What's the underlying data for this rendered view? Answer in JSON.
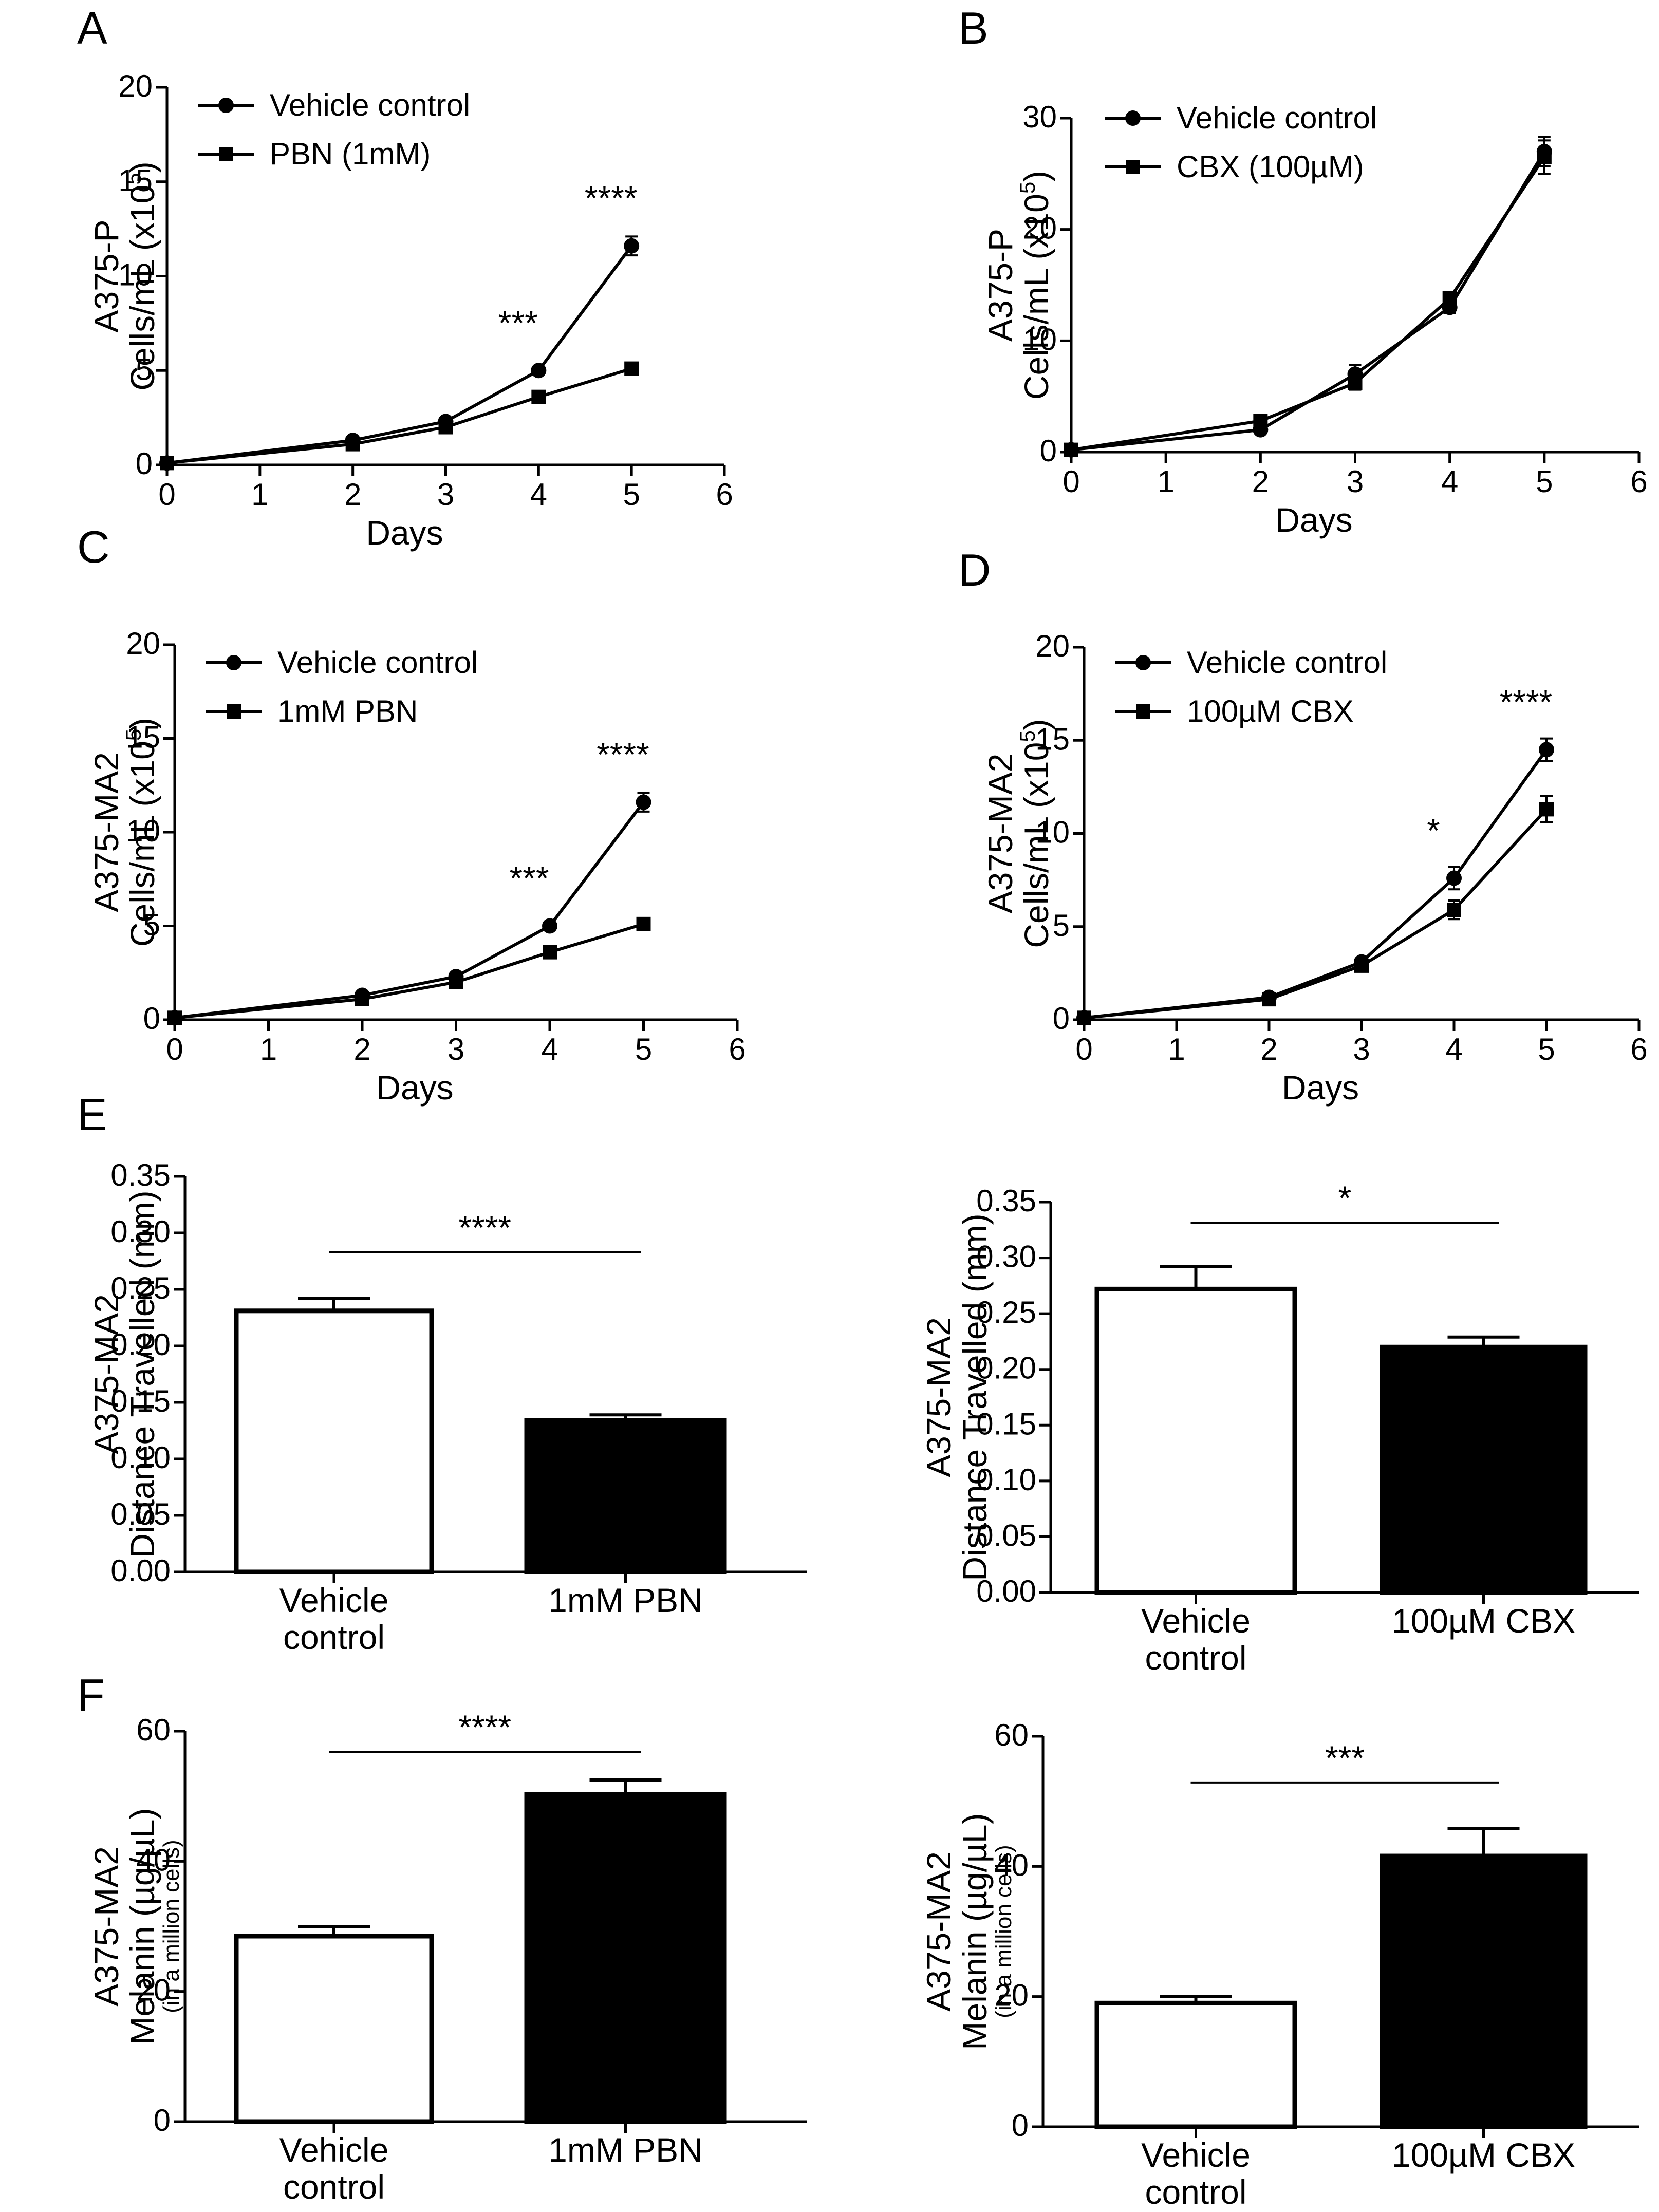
{
  "panel_letters": {
    "A": "A",
    "B": "B",
    "C": "C",
    "D": "D",
    "E": "E",
    "F": "F"
  },
  "chart_data": [
    {
      "id": "A",
      "type": "line",
      "ylabel_line1": "A375-P",
      "ylabel_line2": "Cells/mL (x10",
      "ylabel_sup": "5",
      "ylabel_close": ")",
      "xlabel": "Days",
      "xlim": [
        0,
        6
      ],
      "ylim": [
        0,
        20
      ],
      "xticks": [
        "0",
        "1",
        "2",
        "3",
        "4",
        "5",
        "6"
      ],
      "yticks": [
        "0",
        "5",
        "10",
        "15",
        "20"
      ],
      "series": [
        {
          "name": "Vehicle control",
          "marker": "circle",
          "x": [
            0,
            2,
            3,
            4,
            5
          ],
          "y": [
            0.1,
            1.3,
            2.3,
            5.0,
            11.6
          ],
          "err": [
            0,
            0.1,
            0.15,
            0.1,
            0.5
          ]
        },
        {
          "name": "PBN (1mM)",
          "marker": "square",
          "x": [
            0,
            2,
            3,
            4,
            5
          ],
          "y": [
            0.1,
            1.1,
            2.0,
            3.6,
            5.1
          ],
          "err": [
            0,
            0.1,
            0.1,
            0.1,
            0.1
          ]
        }
      ],
      "annotations": [
        {
          "x": 4,
          "y": 5.0,
          "text": "***"
        },
        {
          "x": 5,
          "y": 11.6,
          "text": "****"
        }
      ]
    },
    {
      "id": "B",
      "type": "line",
      "ylabel_line1": "A375-P",
      "ylabel_line2": "Cells/mL (x10",
      "ylabel_sup": "5",
      "ylabel_close": ")",
      "xlabel": "Days",
      "xlim": [
        0,
        6
      ],
      "ylim": [
        0,
        30
      ],
      "xticks": [
        "0",
        "1",
        "2",
        "3",
        "4",
        "5",
        "6"
      ],
      "yticks": [
        "0",
        "10",
        "20",
        "30"
      ],
      "series": [
        {
          "name": "Vehicle control",
          "marker": "circle",
          "x": [
            0,
            2,
            3,
            4,
            5
          ],
          "y": [
            0.2,
            2.0,
            7.0,
            13.0,
            27.0
          ],
          "err": [
            0,
            0.3,
            0.8,
            0.5,
            1.3
          ]
        },
        {
          "name": "CBX (100µM)",
          "marker": "square",
          "x": [
            0,
            2,
            3,
            4,
            5
          ],
          "y": [
            0.2,
            2.8,
            6.2,
            13.8,
            26.5
          ],
          "err": [
            0,
            0.4,
            0.6,
            0.6,
            1.5
          ]
        }
      ],
      "annotations": []
    },
    {
      "id": "C",
      "type": "line",
      "ylabel_line1": "A375-MA2",
      "ylabel_line2": "Cells/mL (x10",
      "ylabel_sup": "5",
      "ylabel_close": ")",
      "xlabel": "Days",
      "xlim": [
        0,
        6
      ],
      "ylim": [
        0,
        20
      ],
      "xticks": [
        "0",
        "1",
        "2",
        "3",
        "4",
        "5",
        "6"
      ],
      "yticks": [
        "0",
        "5",
        "10",
        "15",
        "20"
      ],
      "series": [
        {
          "name": "Vehicle control",
          "marker": "circle",
          "x": [
            0,
            2,
            3,
            4,
            5
          ],
          "y": [
            0.1,
            1.3,
            2.3,
            5.0,
            11.6
          ],
          "err": [
            0,
            0.1,
            0.15,
            0.1,
            0.5
          ]
        },
        {
          "name": "1mM PBN",
          "marker": "square",
          "x": [
            0,
            2,
            3,
            4,
            5
          ],
          "y": [
            0.1,
            1.1,
            2.0,
            3.6,
            5.1
          ],
          "err": [
            0,
            0.1,
            0.1,
            0.1,
            0.1
          ]
        }
      ],
      "annotations": [
        {
          "x": 4,
          "y": 5.0,
          "text": "***"
        },
        {
          "x": 5,
          "y": 11.6,
          "text": "****"
        }
      ]
    },
    {
      "id": "D",
      "type": "line",
      "ylabel_line1": "A375-MA2",
      "ylabel_line2": "Cells/mL (x10",
      "ylabel_sup": "5",
      "ylabel_close": ")",
      "xlabel": "Days",
      "xlim": [
        0,
        6
      ],
      "ylim": [
        0,
        20
      ],
      "xticks": [
        "0",
        "1",
        "2",
        "3",
        "4",
        "5",
        "6"
      ],
      "yticks": [
        "0",
        "5",
        "10",
        "15",
        "20"
      ],
      "series": [
        {
          "name": "Vehicle control",
          "marker": "circle",
          "x": [
            0,
            2,
            3,
            4,
            5
          ],
          "y": [
            0.1,
            1.2,
            3.1,
            7.6,
            14.5
          ],
          "err": [
            0,
            0.1,
            0.2,
            0.6,
            0.6
          ]
        },
        {
          "name": "100µM CBX",
          "marker": "square",
          "x": [
            0,
            2,
            3,
            4,
            5
          ],
          "y": [
            0.1,
            1.1,
            2.9,
            5.9,
            11.3
          ],
          "err": [
            0,
            0.1,
            0.2,
            0.5,
            0.7
          ]
        }
      ],
      "annotations": [
        {
          "x": 4,
          "y": 7.6,
          "text": "*"
        },
        {
          "x": 5,
          "y": 14.5,
          "text": "****"
        }
      ]
    },
    {
      "id": "E1",
      "type": "bar",
      "ylabel_line1": "A375-MA2",
      "ylabel_line2": "Distance Travelled (mm)",
      "ylim": [
        0,
        0.35
      ],
      "yticks": [
        "0.00",
        "0.05",
        "0.10",
        "0.15",
        "0.20",
        "0.25",
        "0.30",
        "0.35"
      ],
      "categories": [
        [
          "Vehicle",
          "control"
        ],
        [
          "1mM PBN"
        ]
      ],
      "values": [
        0.231,
        0.134
      ],
      "errors": [
        0.011,
        0.005
      ],
      "fills": [
        "#ffffff",
        "#000000"
      ],
      "significance": "****"
    },
    {
      "id": "E2",
      "type": "bar",
      "ylabel_line1": "A375-MA2",
      "ylabel_line2": "Distance Travelled (mm)",
      "ylim": [
        0,
        0.35
      ],
      "yticks": [
        "0.00",
        "0.05",
        "0.10",
        "0.15",
        "0.20",
        "0.25",
        "0.30",
        "0.35"
      ],
      "categories": [
        [
          "Vehicle",
          "control"
        ],
        [
          "100µM CBX"
        ]
      ],
      "values": [
        0.272,
        0.22
      ],
      "errors": [
        0.02,
        0.009
      ],
      "fills": [
        "#ffffff",
        "#000000"
      ],
      "significance": "*"
    },
    {
      "id": "F1",
      "type": "bar",
      "ylabel_line1": "A375-MA2",
      "ylabel_line2": "Melanin (µg/µL)",
      "ylabel_line3": "(in a million cells)",
      "ylim": [
        0,
        60
      ],
      "yticks": [
        "0",
        "20",
        "40",
        "60"
      ],
      "categories": [
        [
          "Vehicle",
          "control"
        ],
        [
          "1mM PBN"
        ]
      ],
      "values": [
        28.5,
        50.3
      ],
      "errors": [
        1.5,
        2.2
      ],
      "fills": [
        "#ffffff",
        "#000000"
      ],
      "significance": "****"
    },
    {
      "id": "F2",
      "type": "bar",
      "ylabel_line1": "A375-MA2",
      "ylabel_line2": "Melanin (µg/µL)",
      "ylabel_line3": "(in a million cells)",
      "ylim": [
        0,
        60
      ],
      "yticks": [
        "0",
        "20",
        "40",
        "60"
      ],
      "categories": [
        [
          "Vehicle",
          "control"
        ],
        [
          "100µM CBX"
        ]
      ],
      "values": [
        19.0,
        41.6
      ],
      "errors": [
        1.0,
        4.2
      ],
      "fills": [
        "#ffffff",
        "#000000"
      ],
      "significance": "***"
    }
  ]
}
